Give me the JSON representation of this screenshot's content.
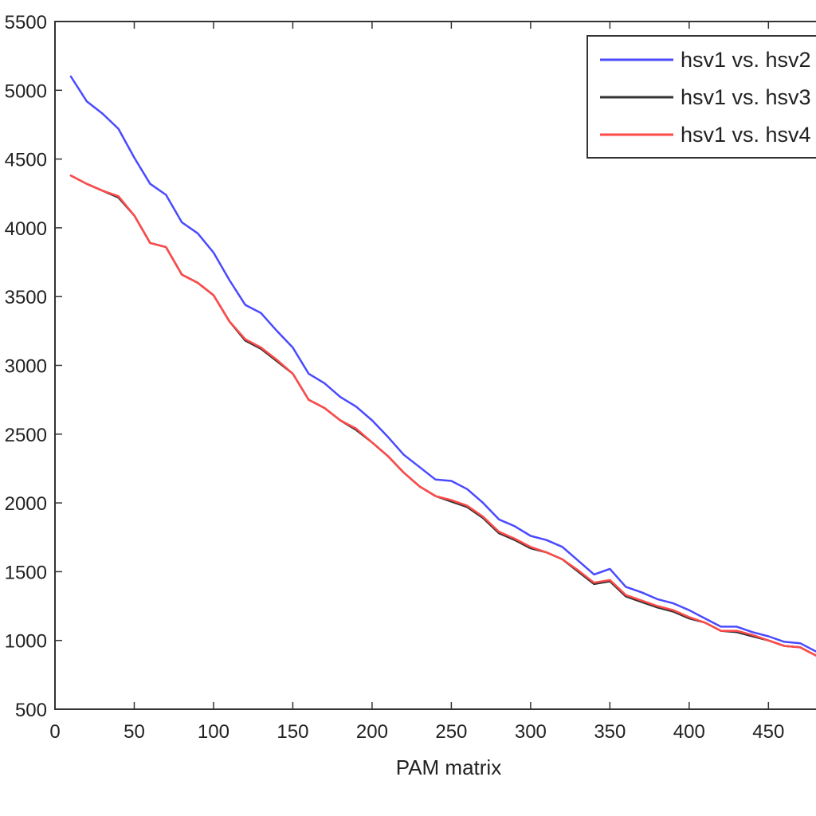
{
  "chart_data": {
    "type": "line",
    "title": "",
    "xlabel": "PAM matrix",
    "ylabel": "",
    "xlim": [
      0,
      480
    ],
    "ylim": [
      500,
      5500
    ],
    "xticks": [
      0,
      50,
      100,
      150,
      200,
      250,
      300,
      350,
      400,
      450
    ],
    "yticks": [
      500,
      1000,
      1500,
      2000,
      2500,
      3000,
      3500,
      4000,
      4500,
      5000,
      5500
    ],
    "xtick_labels": [
      "0",
      "50",
      "100",
      "150",
      "200",
      "250",
      "300",
      "350",
      "400",
      "450"
    ],
    "ytick_labels": [
      "500",
      "1000",
      "1500",
      "2000",
      "2500",
      "3000",
      "3500",
      "4000",
      "4500",
      "5000",
      "5500"
    ],
    "grid": false,
    "legend_position": "top-right",
    "x": [
      10,
      20,
      30,
      40,
      50,
      60,
      70,
      80,
      90,
      100,
      110,
      120,
      130,
      140,
      150,
      160,
      170,
      180,
      190,
      200,
      210,
      220,
      230,
      240,
      250,
      260,
      270,
      280,
      290,
      300,
      310,
      320,
      330,
      340,
      350,
      360,
      370,
      380,
      390,
      400,
      410,
      420,
      430,
      440,
      450,
      460,
      470,
      480
    ],
    "series": [
      {
        "name": "hsv1 vs. hsv2",
        "color": "#4a4aff",
        "values": [
          5100,
          4920,
          4830,
          4720,
          4510,
          4320,
          4240,
          4040,
          3960,
          3820,
          3620,
          3440,
          3380,
          3250,
          3130,
          2940,
          2870,
          2770,
          2700,
          2600,
          2480,
          2350,
          2260,
          2170,
          2160,
          2100,
          2000,
          1880,
          1830,
          1760,
          1730,
          1680,
          1580,
          1480,
          1520,
          1390,
          1350,
          1300,
          1270,
          1220,
          1160,
          1100,
          1100,
          1060,
          1030,
          990,
          980,
          920
        ]
      },
      {
        "name": "hsv1 vs. hsv3",
        "color": "#333333",
        "values": [
          4380,
          4320,
          4270,
          4220,
          4090,
          3890,
          3860,
          3660,
          3600,
          3510,
          3320,
          3180,
          3120,
          3030,
          2940,
          2750,
          2690,
          2600,
          2530,
          2440,
          2340,
          2220,
          2120,
          2050,
          2010,
          1970,
          1890,
          1780,
          1730,
          1670,
          1640,
          1590,
          1500,
          1410,
          1430,
          1320,
          1280,
          1240,
          1210,
          1160,
          1130,
          1070,
          1060,
          1030,
          1000,
          960,
          950,
          890
        ]
      },
      {
        "name": "hsv1 vs. hsv4",
        "color": "#ff4a4a",
        "values": [
          4380,
          4320,
          4270,
          4230,
          4090,
          3890,
          3860,
          3660,
          3600,
          3510,
          3320,
          3190,
          3130,
          3040,
          2940,
          2750,
          2690,
          2600,
          2540,
          2440,
          2340,
          2220,
          2120,
          2050,
          2020,
          1980,
          1900,
          1790,
          1740,
          1680,
          1640,
          1590,
          1510,
          1420,
          1440,
          1330,
          1290,
          1250,
          1220,
          1170,
          1130,
          1070,
          1070,
          1040,
          1000,
          960,
          950,
          890
        ]
      }
    ]
  }
}
